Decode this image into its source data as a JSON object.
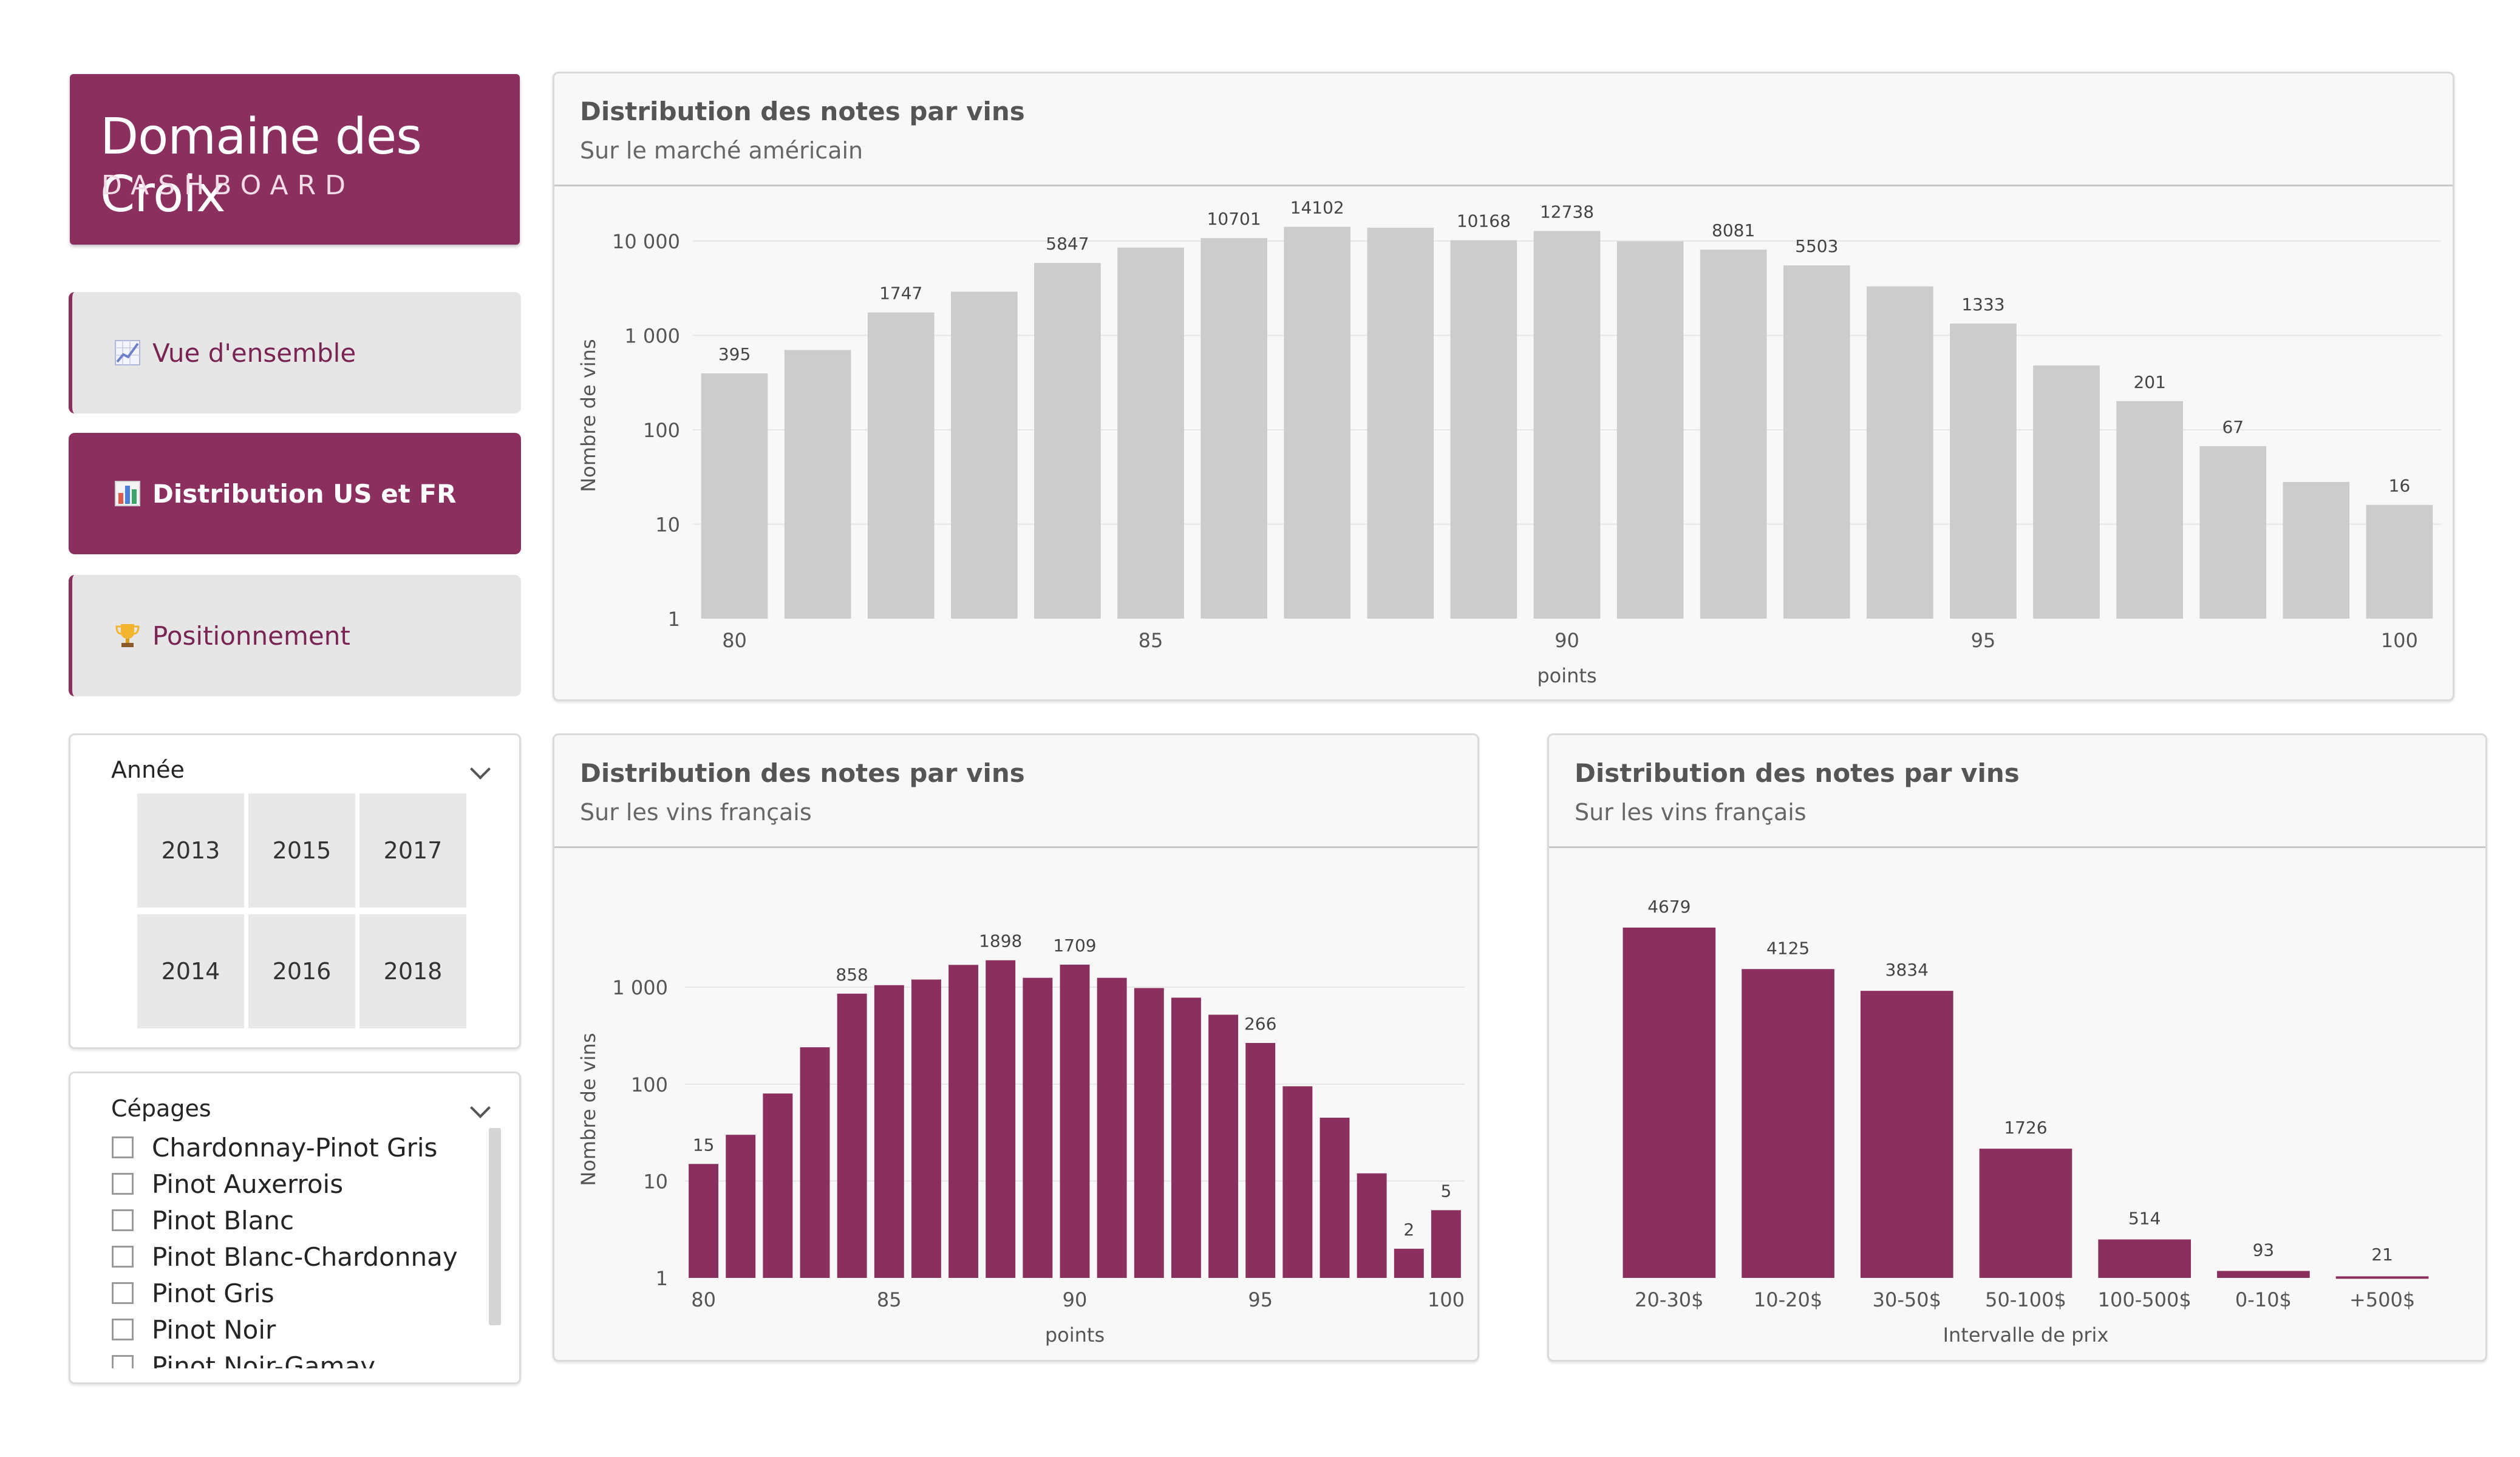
{
  "brand": {
    "title": "Domaine des Croix",
    "subtitle": "DASHBOARD",
    "color": "#8b2f5f"
  },
  "nav": {
    "overview": {
      "label": "Vue d'ensemble",
      "icon": "chart-increasing-icon"
    },
    "distribution": {
      "label": "Distribution US et FR",
      "icon": "bar-chart-icon"
    },
    "positioning": {
      "label": "Positionnement",
      "icon": "trophy-icon"
    }
  },
  "year_slicer": {
    "title": "Année",
    "years": [
      "2013",
      "2015",
      "2017",
      "2014",
      "2016",
      "2018"
    ]
  },
  "grape_slicer": {
    "title": "Cépages",
    "items": [
      "Chardonnay-Pinot Gris",
      "Pinot Auxerrois",
      "Pinot Blanc",
      "Pinot Blanc-Chardonnay",
      "Pinot Gris",
      "Pinot Noir",
      "Pinot Noir-Gamay"
    ]
  },
  "panels": {
    "us": {
      "title": "Distribution des notes par vins",
      "subtitle": "Sur le marché américain"
    },
    "fr": {
      "title": "Distribution des notes par vins",
      "subtitle": "Sur les vins français"
    },
    "price": {
      "title": "Distribution des notes par vins",
      "subtitle": "Sur les vins français"
    }
  },
  "chart_data": [
    {
      "type": "bar",
      "color": "#cccccc",
      "x": [
        80,
        81,
        82,
        83,
        84,
        85,
        86,
        87,
        88,
        89,
        90,
        91,
        92,
        93,
        94,
        95,
        96,
        97,
        98,
        99,
        100
      ],
      "values": [
        395,
        700,
        1747,
        2900,
        5847,
        8500,
        10701,
        14102,
        13800,
        10168,
        12738,
        9900,
        8081,
        5503,
        3300,
        1333,
        480,
        201,
        67,
        28,
        16
      ],
      "data_labels": [
        "395",
        "",
        "1747",
        "",
        "5847",
        "",
        "10701",
        "14102",
        "",
        "10168",
        "12738",
        "",
        "8081",
        "5503",
        "",
        "1333",
        "",
        "201",
        "67",
        "",
        "16"
      ],
      "xlabel": "points",
      "ylabel": "Nombre de vins",
      "yscale": "log",
      "ylim": [
        1,
        20000
      ],
      "yticks": [
        "1",
        "10",
        "100",
        "1 000",
        "10 000"
      ],
      "xticks": [
        "80",
        "85",
        "90",
        "95",
        "100"
      ]
    },
    {
      "type": "bar",
      "color": "#8b2f5f",
      "x": [
        80,
        81,
        82,
        83,
        84,
        85,
        86,
        87,
        88,
        89,
        90,
        91,
        92,
        93,
        94,
        95,
        96,
        97,
        98,
        99,
        100
      ],
      "values": [
        15,
        30,
        80,
        240,
        858,
        1050,
        1200,
        1700,
        1898,
        1250,
        1709,
        1250,
        980,
        780,
        520,
        266,
        95,
        45,
        12,
        2,
        5
      ],
      "data_labels": [
        "15",
        "",
        "",
        "",
        "858",
        "",
        "",
        "",
        "1898",
        "",
        "1709",
        "",
        "",
        "",
        "",
        "266",
        "",
        "",
        "",
        "2",
        "5"
      ],
      "xlabel": "points",
      "ylabel": "Nombre de vins",
      "yscale": "log",
      "ylim": [
        1,
        3000
      ],
      "yticks": [
        "1",
        "10",
        "100",
        "1 000"
      ],
      "xticks": [
        "80",
        "85",
        "90",
        "95",
        "100"
      ]
    },
    {
      "type": "bar",
      "color": "#8b2f5f",
      "categories": [
        "20-30$",
        "10-20$",
        "30-50$",
        "50-100$",
        "100-500$",
        "0-10$",
        "+500$"
      ],
      "values": [
        4679,
        4125,
        3834,
        1726,
        514,
        93,
        21
      ],
      "data_labels": [
        "4679",
        "4125",
        "3834",
        "1726",
        "514",
        "93",
        "21"
      ],
      "xlabel": "Intervalle de prix",
      "ylabel": "",
      "ylim": [
        0,
        4800
      ]
    }
  ]
}
